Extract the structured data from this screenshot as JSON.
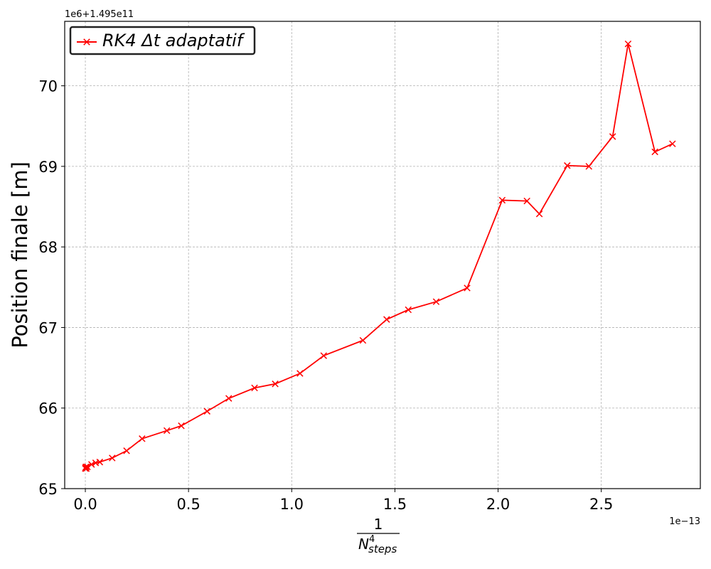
{
  "chart_data": {
    "type": "line",
    "title": "",
    "xlabel": {
      "numerator": "1",
      "base": "N",
      "exponent": "4",
      "subscript": "steps"
    },
    "ylabel": "Position finale [m]",
    "x_offset_text": "1e−13",
    "y_offset_text": "1e6+1.495e11",
    "xlim": [
      -0.1,
      2.98
    ],
    "ylim": [
      65.0,
      70.8
    ],
    "x_ticks": [
      0.0,
      0.5,
      1.0,
      1.5,
      2.0,
      2.5
    ],
    "x_tick_labels": [
      "0.0",
      "0.5",
      "1.0",
      "1.5",
      "2.0",
      "2.5"
    ],
    "y_ticks": [
      65,
      66,
      67,
      68,
      69,
      70
    ],
    "y_tick_labels": [
      "65",
      "66",
      "67",
      "68",
      "69",
      "70"
    ],
    "grid": true,
    "legend_position": "top-left",
    "series": [
      {
        "name": "RK4 Δt adaptatif",
        "color": "#ff0000",
        "marker": "x",
        "x": [
          0.0,
          0.001,
          0.003,
          0.005,
          0.01,
          0.03,
          0.05,
          0.07,
          0.13,
          0.2,
          0.275,
          0.395,
          0.465,
          0.59,
          0.695,
          0.82,
          0.92,
          1.04,
          1.155,
          1.345,
          1.46,
          1.565,
          1.7,
          1.85,
          2.02,
          2.14,
          2.2,
          2.335,
          2.44,
          2.555,
          2.63,
          2.76,
          2.845
        ],
        "y": [
          65.25,
          65.26,
          65.27,
          65.25,
          65.27,
          65.3,
          65.32,
          65.33,
          65.38,
          65.47,
          65.62,
          65.72,
          65.78,
          65.96,
          66.12,
          66.25,
          66.3,
          66.43,
          66.65,
          66.84,
          67.1,
          67.22,
          67.32,
          67.49,
          68.58,
          68.57,
          68.41,
          69.01,
          69.0,
          69.37,
          70.52,
          69.18,
          69.28
        ]
      }
    ]
  }
}
